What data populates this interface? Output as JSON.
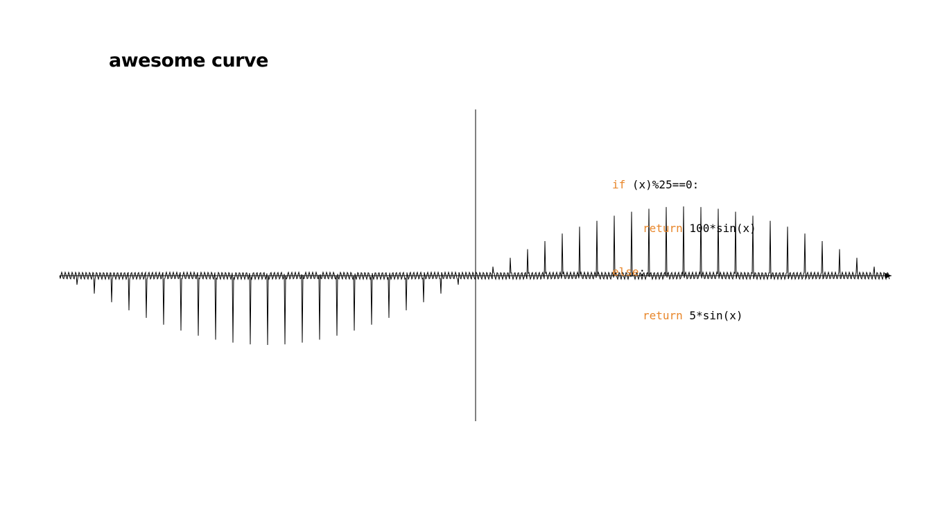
{
  "title": "awesome curve",
  "colors": {
    "keyword": "#e8862a",
    "curve": "#000000",
    "background": "#ffffff"
  },
  "code": {
    "line1": {
      "keyword": "if",
      "text": " (x)%25==0:"
    },
    "line2": {
      "keyword": "return",
      "text": " 100*sin(x)"
    },
    "line3": {
      "keyword": "else",
      "text": ":"
    },
    "line4": {
      "keyword": "return",
      "text": " 5*sin(x)"
    }
  },
  "chart_data": {
    "type": "line",
    "title": "awesome curve",
    "xlabel": "",
    "ylabel": "",
    "grid": false,
    "legend": "none",
    "xlim": [
      -600,
      600
    ],
    "ylim": [
      -225,
      225
    ],
    "function": "f(x) = 100*sin(x) if x % 25 == 0 else 5*sin(x)",
    "spike_interval": 25,
    "spike_amplitude": 100,
    "base_amplitude": 5,
    "x_step": 1,
    "x_to_radians": 0.0052359878
  }
}
